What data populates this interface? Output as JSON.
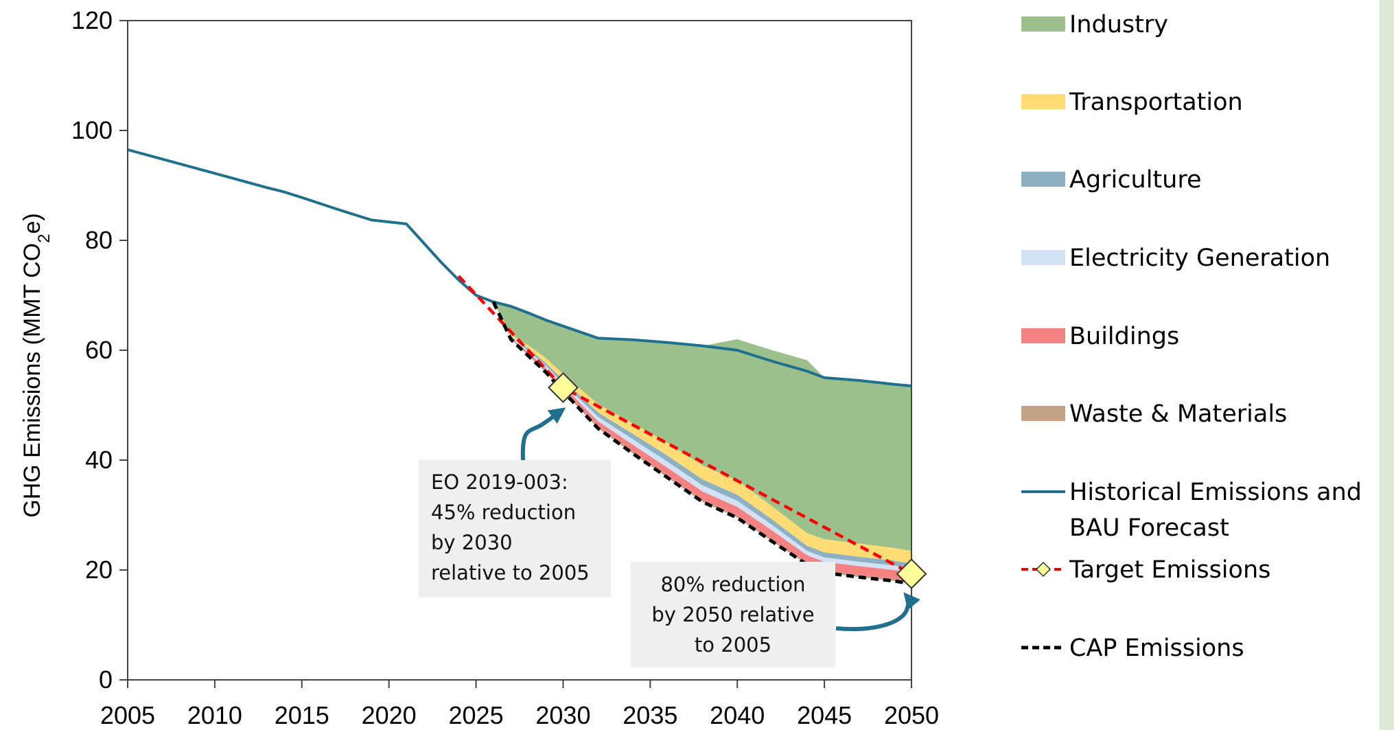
{
  "chart_data": {
    "type": "area",
    "title": "",
    "xlabel": "",
    "ylabel": "GHG Emissions (MMT CO₂e)",
    "ylabel_main": "GHG Emissions (MMT CO",
    "ylabel_sub": "2",
    "ylabel_end": "e)",
    "xlim": [
      2005,
      2050
    ],
    "ylim": [
      0,
      120
    ],
    "x_ticks": [
      "2005",
      "2010",
      "2015",
      "2020",
      "2025",
      "2030",
      "2035",
      "2040",
      "2045",
      "2050"
    ],
    "y_ticks": [
      "0",
      "20",
      "40",
      "60",
      "80",
      "100",
      "120"
    ],
    "grid": false,
    "legend_position": "right",
    "x": [
      2026,
      2027,
      2028,
      2029,
      2030,
      2032,
      2034,
      2036,
      2038,
      2040,
      2042,
      2044,
      2045,
      2047,
      2049,
      2050
    ],
    "series": [
      {
        "name": "Historical Emissions and BAU Forecast",
        "type": "line",
        "color": "#1f6f8f",
        "x": [
          2005,
          2010,
          2013,
          2014,
          2015,
          2017,
          2019,
          2021,
          2023,
          2024,
          2025,
          2026,
          2027,
          2028,
          2029,
          2030,
          2032,
          2034,
          2036,
          2038,
          2040,
          2042,
          2044,
          2045,
          2047,
          2049,
          2050
        ],
        "values": [
          96.5,
          92.2,
          89.6,
          88.8,
          87.8,
          85.7,
          83.7,
          83.0,
          76.0,
          72.8,
          70.0,
          68.8,
          68.0,
          66.8,
          65.5,
          64.4,
          62.2,
          61.9,
          61.4,
          60.8,
          60.0,
          58.0,
          56.2,
          55.0,
          54.5,
          53.8,
          53.5
        ]
      },
      {
        "name": "Target Emissions",
        "type": "line",
        "color": "#ff0000",
        "x": [
          2024,
          2030,
          2050
        ],
        "values": [
          73.5,
          53.2,
          19.3
        ],
        "marker_points": [
          {
            "x": 2030,
            "value": 53.2
          },
          {
            "x": 2050,
            "value": 19.3
          }
        ]
      },
      {
        "name": "CAP Emissions",
        "type": "line",
        "color": "#000000",
        "x": [
          2026,
          2027,
          2028,
          2029,
          2030,
          2032,
          2034,
          2036,
          2038,
          2040,
          2042,
          2044,
          2045,
          2047,
          2049,
          2050
        ],
        "values": [
          68.8,
          62.0,
          59.0,
          56.0,
          52.5,
          45.8,
          41.2,
          36.8,
          32.4,
          29.5,
          25.2,
          21.0,
          19.5,
          18.7,
          18.0,
          17.5
        ]
      }
    ],
    "stack_layers": [
      {
        "name": "Waste & Materials",
        "color": "#c4a286",
        "values": [
          0,
          0,
          0.2,
          0.3,
          0.4,
          0.4,
          0.4,
          0.4,
          0.4,
          0.4,
          0.4,
          0.4,
          0.4,
          0.4,
          0.4,
          0.4
        ]
      },
      {
        "name": "Buildings",
        "color": "#f58282",
        "values": [
          0,
          0.2,
          0.4,
          0.5,
          0.6,
          0.9,
          1.2,
          1.4,
          1.5,
          1.6,
          1.6,
          1.3,
          1.6,
          1.6,
          1.6,
          1.6
        ]
      },
      {
        "name": "Electricity Generation",
        "color": "#d2e1f4",
        "values": [
          0,
          0.2,
          0.3,
          0.4,
          0.5,
          0.8,
          1.0,
          1.1,
          1.1,
          1.1,
          1.0,
          0.8,
          0.8,
          0.8,
          0.8,
          0.8
        ]
      },
      {
        "name": "Agriculture",
        "color": "#8db0c2",
        "values": [
          0,
          0.2,
          0.4,
          0.5,
          0.6,
          0.8,
          1.0,
          1.1,
          1.1,
          1.1,
          1.0,
          0.9,
          0.9,
          0.9,
          0.9,
          0.9
        ]
      },
      {
        "name": "Transportation",
        "color": "#ffdc74",
        "values": [
          0,
          0.3,
          0.6,
          0.9,
          1.1,
          1.5,
          1.9,
          2.3,
          2.5,
          2.6,
          2.4,
          2.3,
          2.4,
          2.4,
          2.3,
          2.3
        ]
      },
      {
        "name": "Industry",
        "color": "#9cc08c",
        "values": [
          0,
          5.1,
          5.9,
          6.9,
          8.7,
          12.0,
          15.2,
          18.3,
          21.8,
          25.7,
          28.4,
          31.5,
          29.4,
          29.7,
          29.8,
          30.0
        ]
      }
    ],
    "legend": [
      {
        "label": "Industry",
        "kind": "area",
        "color": "#9cc08c"
      },
      {
        "label": "Transportation",
        "kind": "area",
        "color": "#ffdc74"
      },
      {
        "label": "Agriculture",
        "kind": "area",
        "color": "#8db0c2"
      },
      {
        "label": "Electricity Generation",
        "kind": "area",
        "color": "#d2e1f4"
      },
      {
        "label": "Buildings",
        "kind": "area",
        "color": "#f58282"
      },
      {
        "label": "Waste & Materials",
        "kind": "area",
        "color": "#c4a286"
      },
      {
        "label": "Historical Emissions and",
        "label2": "BAU Forecast",
        "kind": "line",
        "color": "#1f6f8f"
      },
      {
        "label": "Target Emissions",
        "kind": "dashed-marker",
        "color": "#ff0000",
        "marker_color": "#ffff99"
      },
      {
        "label": "CAP Emissions",
        "kind": "dashed",
        "color": "#000000"
      }
    ],
    "annotations": [
      {
        "lines": [
          "EO 2019-003:",
          "45% reduction",
          "by 2030",
          "relative to 2005"
        ],
        "points_to": {
          "x": 2030,
          "value": 53.2
        }
      },
      {
        "lines": [
          "80% reduction",
          "by 2050 relative",
          "to 2005"
        ],
        "points_to": {
          "x": 2050,
          "value": 19.3
        }
      }
    ]
  }
}
